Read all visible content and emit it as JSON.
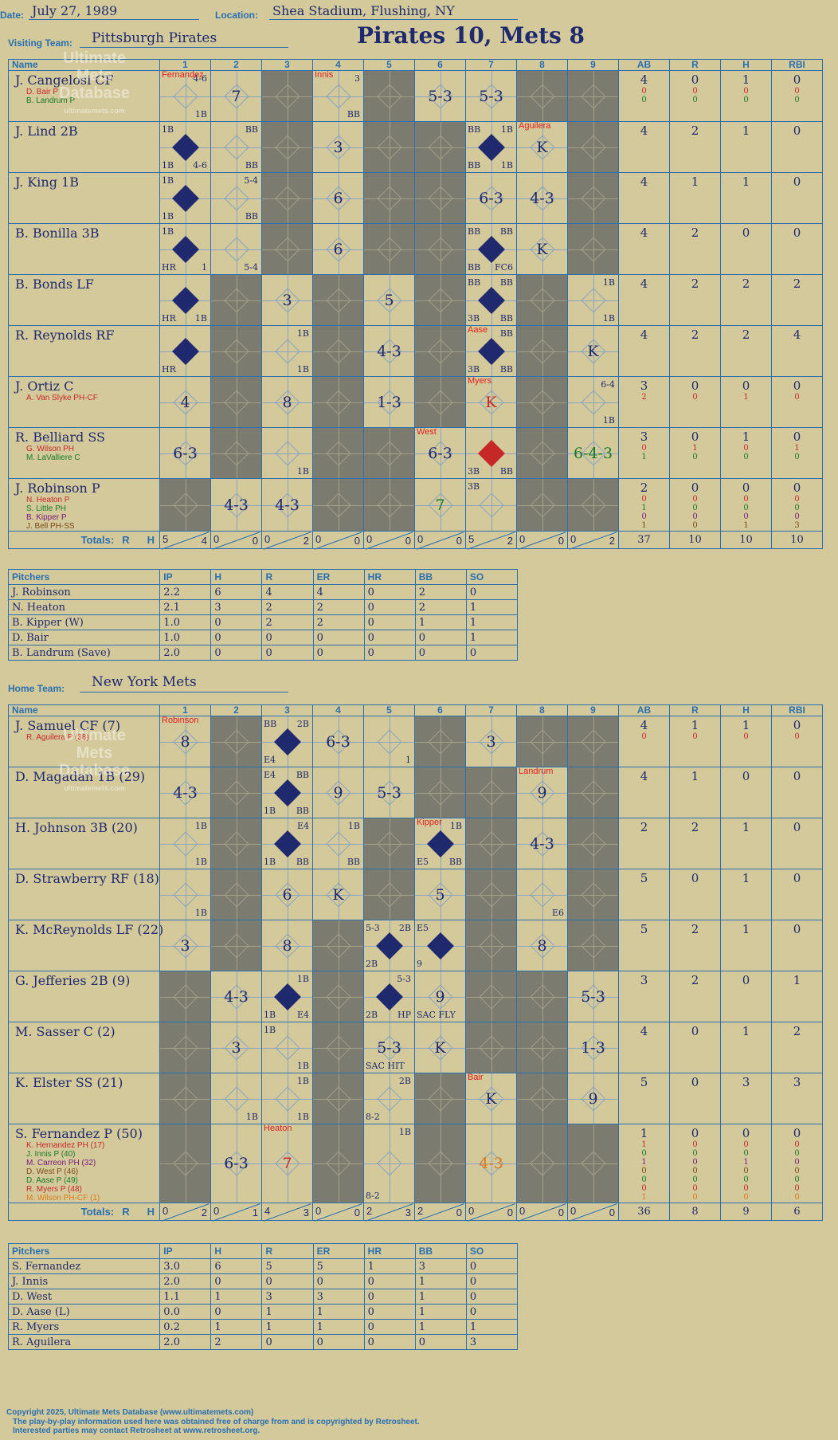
{
  "labels": {
    "date": "Date:",
    "location": "Location:",
    "visiting": "Visiting Team:",
    "home": "Home Team:",
    "name": "Name",
    "totals": "Totals:",
    "r": "R",
    "h": "H",
    "pitchers": "Pitchers",
    "stat_heads": [
      "AB",
      "R",
      "H",
      "RBI"
    ],
    "pitch_heads": [
      "IP",
      "H",
      "R",
      "ER",
      "HR",
      "BB",
      "SO"
    ],
    "innings": [
      "1",
      "2",
      "3",
      "4",
      "5",
      "6",
      "7",
      "8",
      "9"
    ]
  },
  "header": {
    "date": "July 27, 1989",
    "location": "Shea Stadium, Flushing, NY",
    "title": "Pirates 10, Mets 8"
  },
  "watermark": {
    "line1": "Ultimate",
    "line2": "Mets",
    "line3": "Database",
    "url": "ultimatemets.com"
  },
  "visitor": {
    "team": "Pittsburgh Pirates",
    "players": [
      {
        "name": "J. Cangelosi  CF",
        "subs": [
          {
            "t": "D. Bair  P",
            "c": "#c62828"
          },
          {
            "t": "B. Landrum  P",
            "c": "#1a7a2a"
          }
        ],
        "stats": [
          [
            "4",
            "0",
            "1",
            "0"
          ],
          [
            "0",
            "0",
            "0",
            "0"
          ],
          [
            "0",
            "0",
            "0",
            "0"
          ]
        ]
      },
      {
        "name": "J. Lind  2B",
        "subs": [],
        "stats": [
          [
            "4",
            "2",
            "1",
            "0"
          ]
        ]
      },
      {
        "name": "J. King  1B",
        "subs": [],
        "stats": [
          [
            "4",
            "1",
            "1",
            "0"
          ]
        ]
      },
      {
        "name": "B. Bonilla  3B",
        "subs": [],
        "stats": [
          [
            "4",
            "2",
            "0",
            "0"
          ]
        ]
      },
      {
        "name": "B. Bonds  LF",
        "subs": [],
        "stats": [
          [
            "4",
            "2",
            "2",
            "2"
          ]
        ]
      },
      {
        "name": "R. Reynolds  RF",
        "subs": [],
        "stats": [
          [
            "4",
            "2",
            "2",
            "4"
          ]
        ]
      },
      {
        "name": "J. Ortiz  C",
        "subs": [
          {
            "t": "A. Van Slyke  PH-CF",
            "c": "#c62828"
          }
        ],
        "stats": [
          [
            "3",
            "0",
            "0",
            "0"
          ],
          [
            "2",
            "0",
            "1",
            "0"
          ]
        ]
      },
      {
        "name": "R. Belliard  SS",
        "subs": [
          {
            "t": "G. Wilson  PH",
            "c": "#c62828"
          },
          {
            "t": "M. LaValliere  C",
            "c": "#1a7a2a"
          }
        ],
        "stats": [
          [
            "3",
            "0",
            "1",
            "0"
          ],
          [
            "0",
            "1",
            "0",
            "1"
          ],
          [
            "1",
            "0",
            "0",
            "0"
          ]
        ]
      },
      {
        "name": "J. Robinson  P",
        "subs": [
          {
            "t": "N. Heaton  P",
            "c": "#c62828"
          },
          {
            "t": "S. Little  PH",
            "c": "#1a7a2a"
          },
          {
            "t": "B. Kipper  P",
            "c": "#7a1a7a"
          },
          {
            "t": "J. Bell  PH-SS",
            "c": "#7a4a1a"
          }
        ],
        "stats": [
          [
            "2",
            "0",
            "0",
            "0"
          ],
          [
            "0",
            "0",
            "0",
            "0"
          ],
          [
            "1",
            "0",
            "0",
            "0"
          ],
          [
            "0",
            "0",
            "0",
            "0"
          ],
          [
            "1",
            "0",
            "1",
            "3"
          ]
        ]
      }
    ],
    "totals": {
      "inn": [
        [
          "5",
          "4"
        ],
        [
          "0",
          "0"
        ],
        [
          "0",
          "2"
        ],
        [
          "0",
          "0"
        ],
        [
          "0",
          "0"
        ],
        [
          "0",
          "0"
        ],
        [
          "5",
          "2"
        ],
        [
          "0",
          "0"
        ],
        [
          "0",
          "2"
        ]
      ],
      "stats": [
        "37",
        "10",
        "10",
        "10"
      ]
    },
    "pitchers": [
      [
        "J. Robinson",
        "2.2",
        "6",
        "4",
        "4",
        "0",
        "2",
        "0"
      ],
      [
        "N. Heaton",
        "2.1",
        "3",
        "2",
        "2",
        "0",
        "2",
        "1"
      ],
      [
        "B. Kipper (W)",
        "1.0",
        "0",
        "2",
        "2",
        "0",
        "1",
        "1"
      ],
      [
        "D. Bair",
        "1.0",
        "0",
        "0",
        "0",
        "0",
        "0",
        "1"
      ],
      [
        "B. Landrum (Save)",
        "2.0",
        "0",
        "0",
        "0",
        "0",
        "0",
        "0"
      ]
    ]
  },
  "homeTeam": {
    "team": "New York Mets",
    "players": [
      {
        "name": "J. Samuel  CF (7)",
        "subs": [
          {
            "t": "R. Aguilera  P (38)",
            "c": "#c62828"
          }
        ],
        "stats": [
          [
            "4",
            "1",
            "1",
            "0"
          ],
          [
            "0",
            "0",
            "0",
            "0"
          ]
        ]
      },
      {
        "name": "D. Magadan  1B (29)",
        "subs": [],
        "stats": [
          [
            "4",
            "1",
            "0",
            "0"
          ]
        ]
      },
      {
        "name": "H. Johnson  3B (20)",
        "subs": [],
        "stats": [
          [
            "2",
            "2",
            "1",
            "0"
          ]
        ]
      },
      {
        "name": "D. Strawberry  RF (18)",
        "subs": [],
        "stats": [
          [
            "5",
            "0",
            "1",
            "0"
          ]
        ]
      },
      {
        "name": "K. McReynolds  LF (22)",
        "subs": [],
        "stats": [
          [
            "5",
            "2",
            "1",
            "0"
          ]
        ]
      },
      {
        "name": "G. Jefferies  2B (9)",
        "subs": [],
        "stats": [
          [
            "3",
            "2",
            "0",
            "1"
          ]
        ]
      },
      {
        "name": "M. Sasser  C (2)",
        "subs": [],
        "stats": [
          [
            "4",
            "0",
            "1",
            "2"
          ]
        ]
      },
      {
        "name": "K. Elster  SS (21)",
        "subs": [],
        "stats": [
          [
            "5",
            "0",
            "3",
            "3"
          ]
        ]
      },
      {
        "name": "S. Fernandez  P (50)",
        "subs": [
          {
            "t": "K. Hernandez  PH (17)",
            "c": "#c62828"
          },
          {
            "t": "J. Innis  P (40)",
            "c": "#1a7a2a"
          },
          {
            "t": "M. Carreon  PH (32)",
            "c": "#7a1a7a"
          },
          {
            "t": "D. West  P (46)",
            "c": "#7a4a1a"
          },
          {
            "t": "D. Aase  P (49)",
            "c": "#1a7a2a"
          },
          {
            "t": "R. Myers  P (48)",
            "c": "#c62828"
          },
          {
            "t": "M. Wilson  PH-CF (1)",
            "c": "#e07a1a"
          }
        ],
        "stats": [
          [
            "1",
            "0",
            "0",
            "0"
          ],
          [
            "1",
            "0",
            "0",
            "0"
          ],
          [
            "0",
            "0",
            "0",
            "0"
          ],
          [
            "1",
            "0",
            "1",
            "0"
          ],
          [
            "0",
            "0",
            "0",
            "0"
          ],
          [
            "0",
            "0",
            "0",
            "0"
          ],
          [
            "0",
            "0",
            "0",
            "0"
          ],
          [
            "1",
            "0",
            "0",
            "0"
          ]
        ]
      }
    ],
    "totals": {
      "inn": [
        [
          "0",
          "2"
        ],
        [
          "0",
          "1"
        ],
        [
          "4",
          "3"
        ],
        [
          "0",
          "0"
        ],
        [
          "2",
          "3"
        ],
        [
          "2",
          "0"
        ],
        [
          "0",
          "0"
        ],
        [
          "0",
          "0"
        ],
        [
          "0",
          "0"
        ]
      ],
      "stats": [
        "36",
        "8",
        "9",
        "6"
      ]
    },
    "pitchers": [
      [
        "S. Fernandez",
        "3.0",
        "6",
        "5",
        "5",
        "1",
        "3",
        "0"
      ],
      [
        "J. Innis",
        "2.0",
        "0",
        "0",
        "0",
        "0",
        "1",
        "0"
      ],
      [
        "D. West",
        "1.1",
        "1",
        "3",
        "3",
        "0",
        "1",
        "0"
      ],
      [
        "D. Aase (L)",
        "0.0",
        "0",
        "1",
        "1",
        "0",
        "1",
        "0"
      ],
      [
        "R. Myers",
        "0.2",
        "1",
        "1",
        "1",
        "0",
        "1",
        "1"
      ],
      [
        "R. Aguilera",
        "2.0",
        "2",
        "0",
        "0",
        "0",
        "0",
        "3"
      ]
    ]
  },
  "visitorGrid": [
    [
      {
        "c": "Fernandez",
        "tr": "4-6",
        "br": "1B"
      },
      {
        "res": "7"
      },
      {
        "g": 1
      },
      {
        "c": "Innis",
        "tr": "3",
        "br": "BB"
      },
      {
        "g": 1
      },
      {
        "res": "5-3"
      },
      {
        "res": "5-3"
      },
      {
        "g": 1
      },
      {
        "g": 1
      }
    ],
    [
      {
        "s": 1,
        "tl": "1B",
        "bl": "1B",
        "br": "4-6"
      },
      {
        "tr": "BB",
        "br": "BB"
      },
      {
        "g": 1
      },
      {
        "res": "3"
      },
      {
        "g": 1
      },
      {
        "g": 1
      },
      {
        "s": 1,
        "tl": "BB",
        "tr": "1B",
        "bl": "BB",
        "br": "1B"
      },
      {
        "c": "Aguilera",
        "res": "K"
      },
      {
        "g": 1
      }
    ],
    [
      {
        "s": 1,
        "tl": "1B",
        "bl": "1B"
      },
      {
        "tr": "5-4",
        "br": "BB"
      },
      {
        "g": 1
      },
      {
        "res": "6"
      },
      {
        "g": 1
      },
      {
        "g": 1
      },
      {
        "res": "6-3"
      },
      {
        "res": "4-3"
      },
      {
        "g": 1
      }
    ],
    [
      {
        "s": 1,
        "tl": "1B",
        "bl": "HR",
        "br": "1"
      },
      {
        "br": "5-4"
      },
      {
        "g": 1
      },
      {
        "res": "6"
      },
      {
        "g": 1
      },
      {
        "g": 1
      },
      {
        "s": 1,
        "tl": "BB",
        "tr": "BB",
        "bl": "BB",
        "br": "FC6"
      },
      {
        "res": "K"
      },
      {
        "g": 1
      }
    ],
    [
      {
        "s": 1,
        "bl": "HR",
        "br": "1B"
      },
      {
        "g": 1
      },
      {
        "res": "3"
      },
      {
        "g": 1
      },
      {
        "res": "5"
      },
      {
        "g": 1
      },
      {
        "s": 1,
        "tl": "BB",
        "tr": "BB",
        "bl": "3B",
        "br": "BB"
      },
      {
        "g": 1
      },
      {
        "tr": "1B",
        "br": "1B"
      }
    ],
    [
      {
        "s": 1,
        "bl": "HR"
      },
      {
        "g": 1
      },
      {
        "tr": "1B",
        "br": "1B"
      },
      {
        "g": 1
      },
      {
        "res": "4-3"
      },
      {
        "g": 1
      },
      {
        "s": 1,
        "c": "Aase",
        "tr": "BB",
        "bl": "3B",
        "br": "BB"
      },
      {
        "g": 1
      },
      {
        "res": "K"
      }
    ],
    [
      {
        "res": "4"
      },
      {
        "g": 1
      },
      {
        "res": "8"
      },
      {
        "g": 1
      },
      {
        "res": "1-3"
      },
      {
        "g": 1
      },
      {
        "c": "Myers",
        "res": "K",
        "rc": "red"
      },
      {
        "g": 1
      },
      {
        "tr": "6-4",
        "br": "1B"
      }
    ],
    [
      {
        "res": "6-3"
      },
      {
        "g": 1
      },
      {
        "br": "1B"
      },
      {
        "g": 1
      },
      {
        "g": 1
      },
      {
        "c": "West",
        "res": "6-3"
      },
      {
        "s": 2,
        "bl": "3B",
        "br": "BB"
      },
      {
        "g": 1
      },
      {
        "res": "6-4-3",
        "rc": "green"
      }
    ],
    [
      {
        "g": 1
      },
      {
        "res": "4-3"
      },
      {
        "res": "4-3"
      },
      {
        "g": 1
      },
      {
        "g": 1
      },
      {
        "res": "7",
        "rc": "green"
      },
      {
        "tl": "3B"
      },
      {
        "g": 1
      },
      {
        "g": 1
      }
    ]
  ],
  "homeGrid": [
    [
      {
        "c": "Robinson",
        "res": "8"
      },
      {
        "g": 1
      },
      {
        "s": 1,
        "tl": "BB",
        "tr": "2B",
        "bl": "E4"
      },
      {
        "res": "6-3"
      },
      {
        "br": "1"
      },
      {
        "g": 1
      },
      {
        "res": "3"
      },
      {
        "g": 1
      },
      {
        "g": 1
      }
    ],
    [
      {
        "res": "4-3"
      },
      {
        "g": 1
      },
      {
        "s": 1,
        "tl": "E4",
        "tr": "BB",
        "bl": "1B",
        "br": "BB"
      },
      {
        "res": "9"
      },
      {
        "res": "5-3"
      },
      {
        "g": 1
      },
      {
        "g": 1
      },
      {
        "c": "Landrum",
        "res": "9"
      },
      {
        "g": 1
      }
    ],
    [
      {
        "tr": "1B",
        "br": "1B"
      },
      {
        "g": 1
      },
      {
        "s": 1,
        "tr": "E4",
        "bl": "1B",
        "br": "BB"
      },
      {
        "tr": "1B",
        "br": "BB"
      },
      {
        "g": 1
      },
      {
        "s": 1,
        "c": "Kipper",
        "tr": "1B",
        "bl": "E5",
        "br": "BB"
      },
      {
        "g": 1
      },
      {
        "res": "4-3"
      },
      {
        "g": 1
      }
    ],
    [
      {
        "br": "1B"
      },
      {
        "g": 1
      },
      {
        "res": "6"
      },
      {
        "res": "K"
      },
      {
        "g": 1
      },
      {
        "res": "5"
      },
      {
        "g": 1
      },
      {
        "br": "E6"
      },
      {
        "g": 1
      }
    ],
    [
      {
        "res": "3"
      },
      {
        "g": 1
      },
      {
        "res": "8"
      },
      {
        "g": 1
      },
      {
        "s": 1,
        "tl": "5-3",
        "tr": "2B",
        "bl": "2B"
      },
      {
        "s": 1,
        "tl": "E5",
        "bl": "9"
      },
      {
        "g": 1
      },
      {
        "res": "8"
      },
      {
        "g": 1
      }
    ],
    [
      {
        "g": 1
      },
      {
        "res": "4-3"
      },
      {
        "s": 1,
        "tr": "1B",
        "bl": "1B",
        "br": "E4"
      },
      {
        "g": 1
      },
      {
        "s": 1,
        "tr": "5-3",
        "bl": "2B",
        "br": "HP"
      },
      {
        "res": "9",
        "bl": "SAC FLY"
      },
      {
        "g": 1
      },
      {
        "g": 1
      },
      {
        "res": "5-3"
      }
    ],
    [
      {
        "g": 1
      },
      {
        "res": "3"
      },
      {
        "tl": "1B",
        "br": "1B"
      },
      {
        "g": 1
      },
      {
        "res": "5-3",
        "bl": "SAC HIT"
      },
      {
        "res": "K"
      },
      {
        "g": 1
      },
      {
        "g": 1
      },
      {
        "res": "1-3"
      }
    ],
    [
      {
        "g": 1
      },
      {
        "br": "1B"
      },
      {
        "tr": "1B",
        "br": "1B"
      },
      {
        "g": 1
      },
      {
        "tr": "2B",
        "bl": "8-2"
      },
      {
        "g": 1
      },
      {
        "c": "Bair",
        "res": "K"
      },
      {
        "g": 1
      },
      {
        "res": "9"
      }
    ],
    [
      {
        "g": 1
      },
      {
        "res": "6-3"
      },
      {
        "c": "Heaton",
        "res": "7",
        "rc": "red"
      },
      {
        "g": 1
      },
      {
        "tr": "1B",
        "bl": "8-2"
      },
      {
        "g": 1
      },
      {
        "res": "4-3",
        "rc": "orange"
      },
      {
        "g": 1
      },
      {
        "g": 1
      }
    ]
  ],
  "footer": {
    "line1": "Copyright 2025, Ultimate Mets Database (www.ultimatemets.com)",
    "line2": "The play-by-play information used here was obtained free of charge from and is copyrighted by Retrosheet.",
    "line3": "Interested parties may contact Retrosheet at www.retrosheet.org."
  }
}
